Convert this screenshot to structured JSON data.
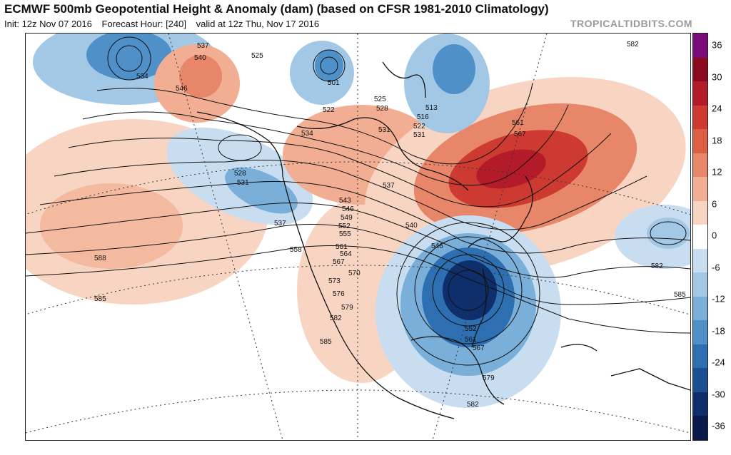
{
  "header": {
    "title": "ECMWF 500mb Geopotential Height & Anomaly (dam) (based on CFSR 1981-2010 Climatology)",
    "init": "Init: 12z Nov 07 2016",
    "forecast_hour": "Forecast Hour: [240]",
    "valid": "valid at 12z Thu, Nov 17 2016",
    "credit": "TROPICALTIDBITS.COM"
  },
  "colorbar": {
    "ticks": [
      "36",
      "30",
      "24",
      "18",
      "12",
      "6",
      "0",
      "-6",
      "-12",
      "-18",
      "-24",
      "-30",
      "-36"
    ],
    "colors": [
      "#7b0a7a",
      "#8c0a1f",
      "#b31b28",
      "#cc3a32",
      "#dd5e45",
      "#e8866a",
      "#f2ae92",
      "#f8d5c3",
      "#ffffff",
      "#c8def0",
      "#a3c8e6",
      "#7aafd9",
      "#4f90c8",
      "#2d6fb0",
      "#1a4f92",
      "#0e2f6b",
      "#091a4a"
    ]
  },
  "contour_labels": [
    "537",
    "540",
    "525",
    "534",
    "546",
    "501",
    "522",
    "525",
    "528",
    "513",
    "516",
    "522",
    "531",
    "534",
    "531",
    "528",
    "531",
    "537",
    "561",
    "567",
    "582",
    "543",
    "546",
    "549",
    "552",
    "555",
    "537",
    "540",
    "546",
    "558",
    "561",
    "564",
    "567",
    "570",
    "573",
    "576",
    "579",
    "582",
    "585",
    "588",
    "585",
    "582",
    "585",
    "552",
    "561",
    "567",
    "579",
    "582"
  ]
}
